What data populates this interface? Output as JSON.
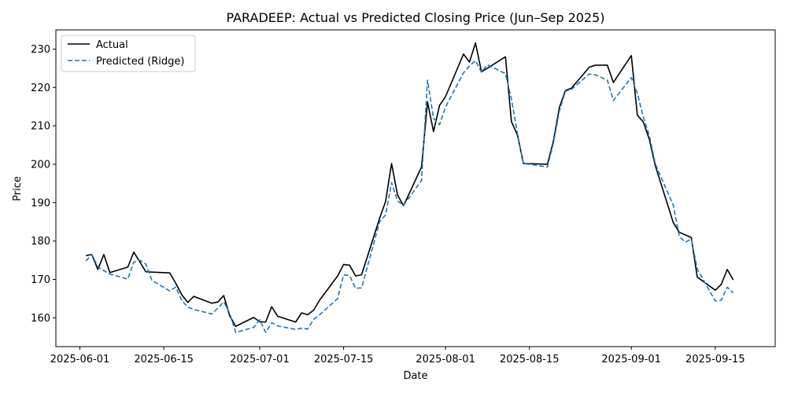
{
  "chart_data": {
    "type": "line",
    "title": "PARADEEP: Actual vs Predicted Closing Price (Jun–Sep 2025)",
    "xlabel": "Date",
    "ylabel": "Price",
    "xlim": [
      "2025-05-28",
      "2025-09-25"
    ],
    "ylim": [
      152.5,
      235
    ],
    "x_ticks": [
      "2025-06-01",
      "2025-06-15",
      "2025-07-01",
      "2025-07-15",
      "2025-08-01",
      "2025-08-15",
      "2025-09-01",
      "2025-09-15"
    ],
    "y_ticks": [
      160,
      170,
      180,
      190,
      200,
      210,
      220,
      230
    ],
    "grid": false,
    "legend_position": "top-left",
    "dates": [
      "2025-06-02",
      "2025-06-03",
      "2025-06-04",
      "2025-06-05",
      "2025-06-06",
      "2025-06-09",
      "2025-06-10",
      "2025-06-11",
      "2025-06-12",
      "2025-06-13",
      "2025-06-16",
      "2025-06-17",
      "2025-06-18",
      "2025-06-19",
      "2025-06-20",
      "2025-06-23",
      "2025-06-24",
      "2025-06-25",
      "2025-06-26",
      "2025-06-27",
      "2025-06-30",
      "2025-07-01",
      "2025-07-02",
      "2025-07-03",
      "2025-07-04",
      "2025-07-07",
      "2025-07-08",
      "2025-07-09",
      "2025-07-10",
      "2025-07-11",
      "2025-07-14",
      "2025-07-15",
      "2025-07-16",
      "2025-07-17",
      "2025-07-18",
      "2025-07-21",
      "2025-07-22",
      "2025-07-23",
      "2025-07-24",
      "2025-07-25",
      "2025-07-28",
      "2025-07-29",
      "2025-07-30",
      "2025-07-31",
      "2025-08-01",
      "2025-08-04",
      "2025-08-05",
      "2025-08-06",
      "2025-08-07",
      "2025-08-08",
      "2025-08-11",
      "2025-08-12",
      "2025-08-13",
      "2025-08-14",
      "2025-08-18",
      "2025-08-19",
      "2025-08-20",
      "2025-08-21",
      "2025-08-22",
      "2025-08-25",
      "2025-08-26",
      "2025-08-28",
      "2025-08-29",
      "2025-09-01",
      "2025-09-02",
      "2025-09-03",
      "2025-09-04",
      "2025-09-05",
      "2025-09-08",
      "2025-09-09",
      "2025-09-10",
      "2025-09-11",
      "2025-09-12",
      "2025-09-15",
      "2025-09-16",
      "2025-09-17",
      "2025-09-18"
    ],
    "series": [
      {
        "name": "Actual",
        "color": "#000000",
        "style": "solid",
        "values": [
          176.2,
          176.5,
          172.6,
          176.5,
          171.8,
          173.2,
          177.1,
          174.6,
          172.0,
          171.9,
          171.7,
          169.0,
          166.0,
          164.0,
          165.6,
          163.8,
          164.1,
          165.8,
          160.5,
          157.8,
          160.1,
          159.0,
          158.9,
          162.9,
          160.4,
          158.9,
          161.3,
          160.8,
          162.0,
          164.6,
          170.9,
          173.9,
          173.7,
          170.9,
          171.2,
          185.9,
          190.3,
          200.2,
          192.0,
          189.2,
          199.3,
          216.2,
          208.5,
          215.3,
          217.6,
          228.7,
          226.6,
          231.6,
          224.1,
          225.0,
          228.0,
          211.1,
          207.6,
          200.2,
          200.0,
          206.0,
          214.8,
          219.2,
          219.8,
          225.3,
          225.8,
          225.8,
          221.3,
          228.3,
          212.8,
          211.0,
          206.5,
          199.6,
          184.8,
          182.3,
          181.6,
          180.9,
          170.6,
          167.2,
          168.7,
          172.6,
          169.9
        ]
      },
      {
        "name": "Predicted (Ridge)",
        "color": "#1f77b4",
        "style": "dashed",
        "values": [
          174.8,
          176.5,
          173.3,
          172.3,
          171.4,
          170.1,
          174.5,
          175.0,
          174.0,
          169.8,
          167.0,
          168.0,
          164.5,
          162.8,
          162.2,
          161.0,
          162.5,
          164.2,
          161.2,
          156.2,
          157.5,
          159.5,
          156.2,
          158.7,
          157.9,
          157.0,
          157.3,
          157.1,
          159.6,
          160.8,
          165.0,
          171.2,
          171.0,
          167.7,
          167.8,
          185.0,
          186.8,
          195.2,
          190.5,
          189.3,
          195.8,
          221.9,
          212.0,
          210.3,
          214.9,
          223.8,
          225.6,
          227.0,
          224.0,
          225.9,
          223.6,
          217.0,
          208.0,
          200.2,
          199.3,
          205.5,
          213.9,
          219.0,
          219.5,
          223.5,
          223.3,
          221.9,
          216.6,
          222.6,
          218.5,
          212.3,
          207.5,
          200.1,
          189.3,
          181.2,
          179.7,
          180.5,
          172.7,
          164.4,
          164.6,
          168.0,
          166.5
        ]
      }
    ]
  }
}
